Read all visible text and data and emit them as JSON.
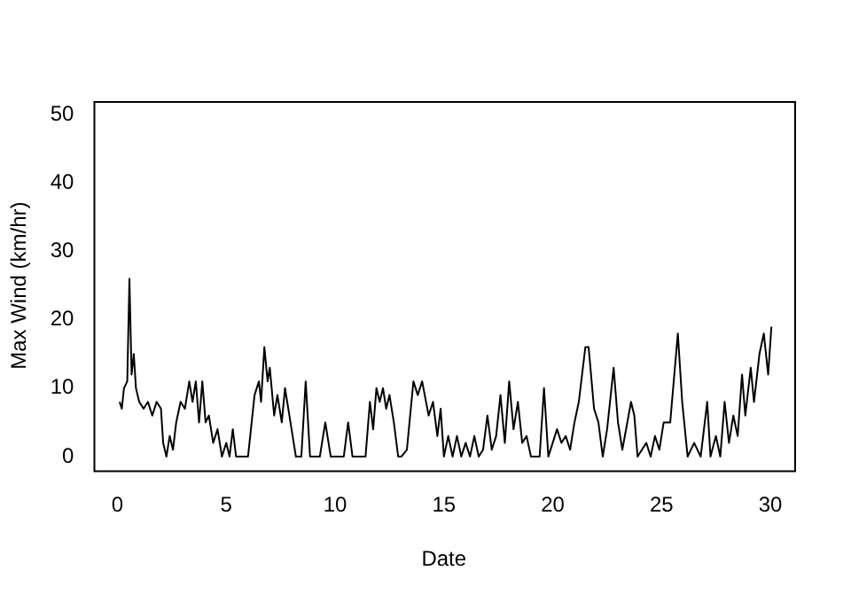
{
  "chart_data": {
    "type": "line",
    "xlabel": "Date",
    "ylabel": "Max Wind (km/hr)",
    "xlim": [
      -1.1,
      31.1
    ],
    "ylim": [
      -2,
      52
    ],
    "xticks": [
      0,
      5,
      10,
      15,
      20,
      25,
      30
    ],
    "yticks": [
      0,
      10,
      20,
      30,
      40,
      50
    ],
    "grid": false,
    "legend": false,
    "marker": "none",
    "line_style": "solid",
    "series": [
      {
        "color": "#000000",
        "x": [
          0.1,
          0.2,
          0.3,
          0.45,
          0.55,
          0.65,
          0.75,
          0.85,
          1.0,
          1.2,
          1.4,
          1.6,
          1.8,
          2.0,
          2.1,
          2.25,
          2.4,
          2.55,
          2.7,
          2.9,
          3.1,
          3.3,
          3.45,
          3.6,
          3.75,
          3.9,
          4.05,
          4.2,
          4.4,
          4.6,
          4.8,
          5.0,
          5.15,
          5.3,
          5.45,
          6.0,
          6.3,
          6.5,
          6.6,
          6.75,
          6.9,
          7.0,
          7.2,
          7.35,
          7.55,
          7.7,
          7.9,
          8.05,
          8.2,
          8.45,
          8.65,
          8.85,
          9.3,
          9.55,
          9.8,
          10.4,
          10.6,
          10.8,
          11.4,
          11.6,
          11.75,
          11.9,
          12.05,
          12.2,
          12.35,
          12.5,
          12.7,
          12.9,
          13.05,
          13.3,
          13.6,
          13.8,
          14.0,
          14.3,
          14.5,
          14.7,
          14.85,
          15.0,
          15.2,
          15.4,
          15.6,
          15.8,
          16.0,
          16.2,
          16.4,
          16.6,
          16.8,
          17.0,
          17.2,
          17.4,
          17.6,
          17.8,
          18.0,
          18.2,
          18.4,
          18.6,
          18.8,
          19.0,
          19.4,
          19.6,
          19.8,
          20.2,
          20.4,
          20.6,
          20.8,
          21.0,
          21.2,
          21.5,
          21.65,
          21.9,
          22.1,
          22.3,
          22.5,
          22.8,
          23.0,
          23.2,
          23.6,
          23.75,
          23.9,
          24.3,
          24.5,
          24.7,
          24.9,
          25.1,
          25.4,
          25.75,
          25.95,
          26.2,
          26.5,
          26.8,
          27.1,
          27.25,
          27.5,
          27.7,
          27.9,
          28.1,
          28.3,
          28.5,
          28.7,
          28.85,
          29.1,
          29.25,
          29.5,
          29.7,
          29.9,
          30.05
        ],
        "values": [
          8,
          7,
          10,
          11,
          26,
          12,
          15,
          10,
          8,
          7,
          8,
          6,
          8,
          7,
          2,
          0,
          3,
          1,
          5,
          8,
          7,
          11,
          8,
          11,
          5,
          11,
          5,
          6,
          2,
          4,
          0,
          2,
          0,
          4,
          0,
          0,
          9,
          11,
          8,
          16,
          11,
          13,
          6,
          9,
          5,
          10,
          6,
          3,
          0,
          0,
          11,
          0,
          0,
          5,
          0,
          0,
          5,
          0,
          0,
          8,
          4,
          10,
          8,
          10,
          7,
          9,
          5,
          0,
          0,
          1,
          11,
          9,
          11,
          6,
          8,
          3,
          7,
          0,
          3,
          0,
          3,
          0,
          2,
          0,
          3,
          0,
          1,
          6,
          1,
          3,
          9,
          2,
          11,
          4,
          8,
          2,
          3,
          0,
          0,
          10,
          0,
          4,
          2,
          3,
          1,
          5,
          8,
          16,
          16,
          7,
          5,
          0,
          4,
          13,
          5,
          1,
          8,
          6,
          0,
          2,
          0,
          3,
          1,
          5,
          5,
          18,
          8,
          0,
          2,
          0,
          8,
          0,
          3,
          0,
          8,
          2,
          6,
          3,
          12,
          6,
          13,
          8,
          15,
          18,
          12,
          19
        ]
      }
    ]
  }
}
